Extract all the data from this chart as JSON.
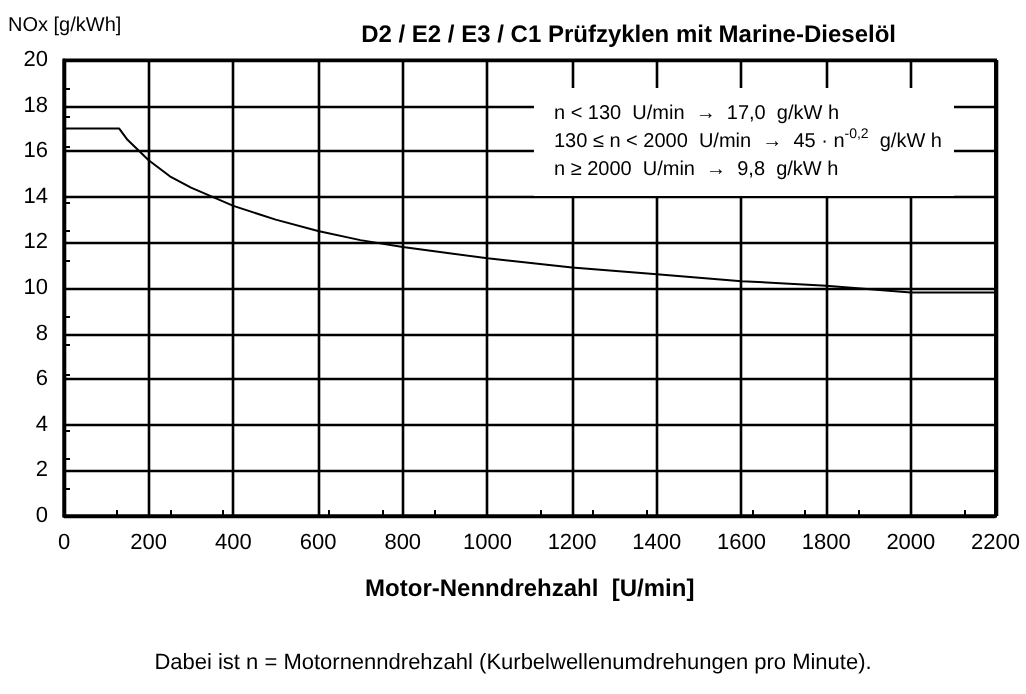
{
  "chart_data": {
    "type": "line",
    "title": "D2 / E2 / E3 / C1 Prüfzyklen mit Marine-Dieselöl",
    "xlabel": "Motor-Nenndrehzahl  [U/min]",
    "ylabel": "NOx [g/kWh]",
    "x": [
      0,
      130,
      150,
      200,
      250,
      300,
      400,
      500,
      600,
      700,
      800,
      1000,
      1200,
      1400,
      1600,
      1800,
      2000,
      2200
    ],
    "series": [
      {
        "color": "#000000",
        "values": [
          17.0,
          17.0,
          16.5,
          15.6,
          14.9,
          14.4,
          13.6,
          13.0,
          12.5,
          12.1,
          11.8,
          11.3,
          10.9,
          10.6,
          10.3,
          10.1,
          9.8,
          9.8
        ]
      }
    ],
    "xlim": [
      0,
      2200
    ],
    "xticks": [
      0,
      200,
      400,
      600,
      800,
      1000,
      1200,
      1400,
      1600,
      1800,
      2000,
      2200
    ],
    "ylim": [
      0,
      20
    ],
    "yticks": [
      0,
      2,
      4,
      6,
      8,
      10,
      12,
      14,
      16,
      18,
      20
    ],
    "grid": true,
    "marker": "none",
    "line_style": "solid",
    "annotations": [
      "n < 130  U/min  →  17,0  g/kW h",
      "130 ≤ n < 2000  U/min  →  45 · n$^{-0,2}$  g/kW h",
      "n ≥ 2000  U/min  →  9,8  g/kW h",
      "Dabei ist n = Motornenndrehzahl (Kurbelwellenumdrehungen pro Minute)."
    ]
  }
}
